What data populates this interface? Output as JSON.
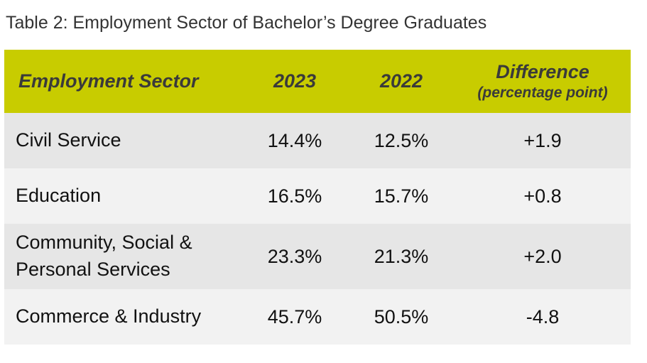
{
  "caption": "Table 2: Employment Sector of Bachelor’s Degree Graduates",
  "header": {
    "sector": "Employment Sector",
    "year_2023": "2023",
    "year_2022": "2022",
    "difference": "Difference",
    "difference_unit": "(percentage point)"
  },
  "rows": [
    {
      "sector": "Civil Service",
      "v2023": "14.4%",
      "v2022": "12.5%",
      "diff": "+1.9"
    },
    {
      "sector": "Education",
      "v2023": "16.5%",
      "v2022": "15.7%",
      "diff": "+0.8"
    },
    {
      "sector_line1": "Community, Social &",
      "sector_line2": "Personal Services",
      "v2023": "23.3%",
      "v2022": "21.3%",
      "diff": "+2.0"
    },
    {
      "sector": "Commerce & Industry",
      "v2023": "45.7%",
      "v2022": "50.5%",
      "diff": "-4.8"
    }
  ],
  "colors": {
    "header_bg": "#c8cc00",
    "row_gray": "#e6e6e6",
    "row_light": "#f2f2f2"
  }
}
